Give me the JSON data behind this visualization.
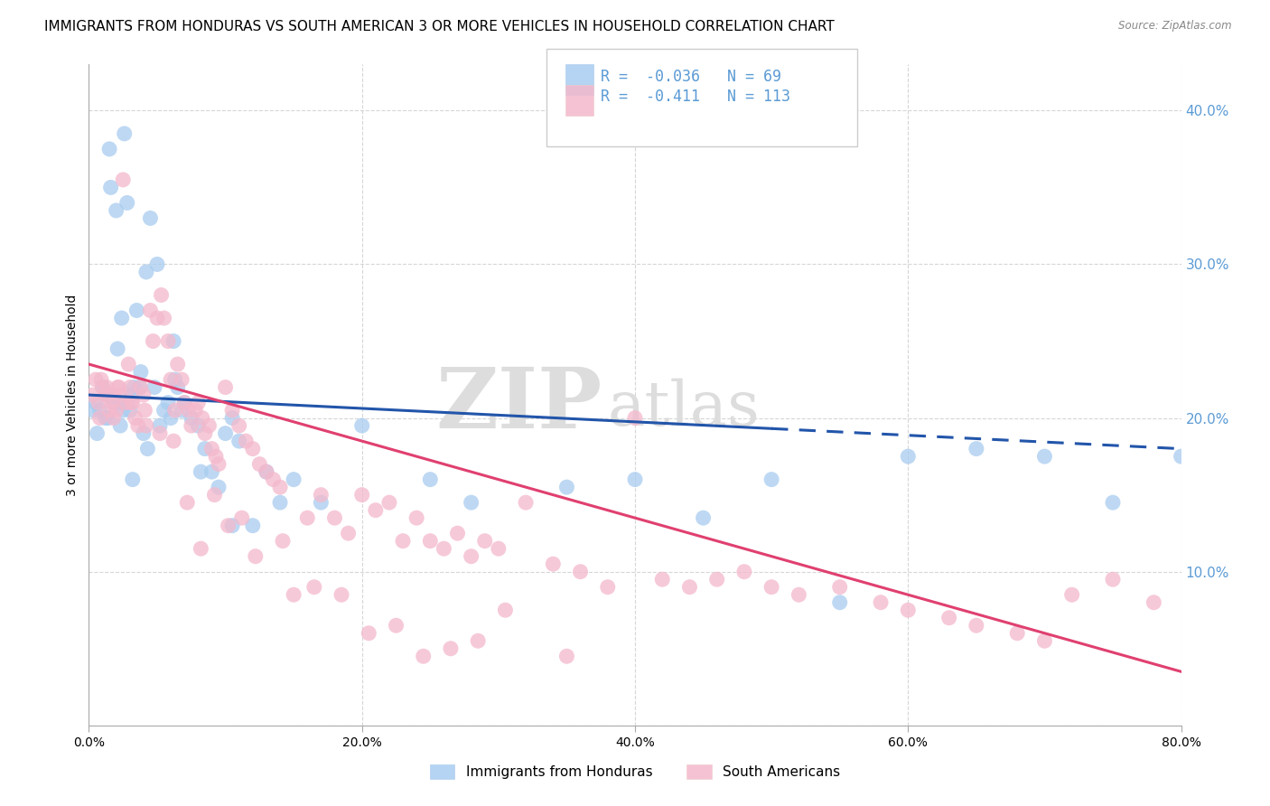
{
  "title": "IMMIGRANTS FROM HONDURAS VS SOUTH AMERICAN 3 OR MORE VEHICLES IN HOUSEHOLD CORRELATION CHART",
  "source": "Source: ZipAtlas.com",
  "ylabel": "3 or more Vehicles in Household",
  "xlim": [
    0.0,
    80.0
  ],
  "ylim": [
    0.0,
    43.0
  ],
  "blue_R": -0.036,
  "blue_N": 69,
  "pink_R": -0.411,
  "pink_N": 113,
  "blue_color": "#A8CCF0",
  "pink_color": "#F4B8CC",
  "blue_line_color": "#2255AA",
  "pink_line_color": "#E04070",
  "blue_scatter_x": [
    0.5,
    0.8,
    1.0,
    1.2,
    1.3,
    1.5,
    1.6,
    1.8,
    2.0,
    2.1,
    2.2,
    2.4,
    2.5,
    2.6,
    2.8,
    3.0,
    3.1,
    3.3,
    3.5,
    3.7,
    3.8,
    4.0,
    4.2,
    4.5,
    4.8,
    5.0,
    5.2,
    5.5,
    5.8,
    6.0,
    6.2,
    6.5,
    6.8,
    7.0,
    7.5,
    8.0,
    8.5,
    9.0,
    9.5,
    10.0,
    10.5,
    11.0,
    12.0,
    13.0,
    14.0,
    15.0,
    17.0,
    20.0,
    25.0,
    28.0,
    35.0,
    40.0,
    45.0,
    50.0,
    55.0,
    60.0,
    65.0,
    70.0,
    75.0,
    80.0,
    0.3,
    0.6,
    1.4,
    2.3,
    3.2,
    4.3,
    6.3,
    8.2,
    10.5
  ],
  "blue_scatter_y": [
    21.0,
    20.5,
    22.0,
    20.0,
    21.5,
    37.5,
    35.0,
    21.0,
    33.5,
    24.5,
    21.0,
    26.5,
    20.5,
    38.5,
    34.0,
    20.5,
    21.5,
    22.0,
    27.0,
    22.0,
    23.0,
    19.0,
    29.5,
    33.0,
    22.0,
    30.0,
    19.5,
    20.5,
    21.0,
    20.0,
    25.0,
    22.0,
    20.5,
    21.0,
    20.0,
    19.5,
    18.0,
    16.5,
    15.5,
    19.0,
    20.0,
    18.5,
    13.0,
    16.5,
    14.5,
    16.0,
    14.5,
    19.5,
    16.0,
    14.5,
    15.5,
    16.0,
    13.5,
    16.0,
    8.0,
    17.5,
    18.0,
    17.5,
    14.5,
    17.5,
    20.5,
    19.0,
    20.0,
    19.5,
    16.0,
    18.0,
    22.5,
    16.5,
    13.0
  ],
  "pink_scatter_x": [
    0.3,
    0.5,
    0.7,
    0.8,
    1.0,
    1.2,
    1.3,
    1.5,
    1.7,
    1.8,
    2.0,
    2.1,
    2.3,
    2.5,
    2.7,
    2.9,
    3.0,
    3.2,
    3.4,
    3.6,
    3.8,
    4.0,
    4.2,
    4.5,
    4.7,
    5.0,
    5.3,
    5.5,
    5.8,
    6.0,
    6.3,
    6.5,
    6.8,
    7.0,
    7.3,
    7.5,
    7.8,
    8.0,
    8.3,
    8.5,
    8.8,
    9.0,
    9.3,
    9.5,
    10.0,
    10.5,
    11.0,
    11.5,
    12.0,
    12.5,
    13.0,
    13.5,
    14.0,
    15.0,
    16.0,
    17.0,
    18.0,
    19.0,
    20.0,
    21.0,
    22.0,
    23.0,
    24.0,
    25.0,
    26.0,
    27.0,
    28.0,
    29.0,
    30.0,
    32.0,
    34.0,
    36.0,
    38.0,
    40.0,
    42.0,
    44.0,
    46.0,
    48.0,
    50.0,
    52.0,
    55.0,
    58.0,
    60.0,
    63.0,
    65.0,
    68.0,
    70.0,
    72.0,
    75.0,
    78.0,
    0.9,
    1.6,
    2.2,
    3.1,
    4.1,
    5.2,
    6.2,
    7.2,
    8.2,
    9.2,
    10.2,
    11.2,
    12.2,
    14.2,
    16.5,
    18.5,
    20.5,
    22.5,
    24.5,
    26.5,
    28.5,
    30.5,
    35.0
  ],
  "pink_scatter_y": [
    21.5,
    22.5,
    21.0,
    20.0,
    22.0,
    21.5,
    22.0,
    20.5,
    21.0,
    20.0,
    20.5,
    22.0,
    21.5,
    35.5,
    21.0,
    23.5,
    22.0,
    21.0,
    20.0,
    19.5,
    22.0,
    21.5,
    19.5,
    27.0,
    25.0,
    26.5,
    28.0,
    26.5,
    25.0,
    22.5,
    20.5,
    23.5,
    22.5,
    21.0,
    20.5,
    19.5,
    20.5,
    21.0,
    20.0,
    19.0,
    19.5,
    18.0,
    17.5,
    17.0,
    22.0,
    20.5,
    19.5,
    18.5,
    18.0,
    17.0,
    16.5,
    16.0,
    15.5,
    8.5,
    13.5,
    15.0,
    13.5,
    12.5,
    15.0,
    14.0,
    14.5,
    12.0,
    13.5,
    12.0,
    11.5,
    12.5,
    11.0,
    12.0,
    11.5,
    14.5,
    10.5,
    10.0,
    9.0,
    20.0,
    9.5,
    9.0,
    9.5,
    10.0,
    9.0,
    8.5,
    9.0,
    8.0,
    7.5,
    7.0,
    6.5,
    6.0,
    5.5,
    8.5,
    9.5,
    8.0,
    22.5,
    21.5,
    22.0,
    21.0,
    20.5,
    19.0,
    18.5,
    14.5,
    11.5,
    15.0,
    13.0,
    13.5,
    11.0,
    12.0,
    9.0,
    8.5,
    6.0,
    6.5,
    4.5,
    5.0,
    5.5,
    7.5,
    4.5
  ],
  "blue_reg_x0": 0.0,
  "blue_reg_x1": 80.0,
  "blue_reg_y0": 21.5,
  "blue_reg_y1": 18.0,
  "blue_solid_x1": 50.0,
  "pink_reg_x0": 0.0,
  "pink_reg_x1": 80.0,
  "pink_reg_y0": 23.5,
  "pink_reg_y1": 3.5,
  "watermark_zip": "ZIP",
  "watermark_atlas": "atlas",
  "watermark_color": "#DDDDDD",
  "background_color": "#FFFFFF",
  "grid_color": "#CCCCCC",
  "title_fontsize": 11,
  "axis_label_fontsize": 10,
  "tick_fontsize": 9,
  "right_tick_color": "#5B9BD5",
  "blue_legend_label": "Immigrants from Honduras",
  "pink_legend_label": "South Americans"
}
